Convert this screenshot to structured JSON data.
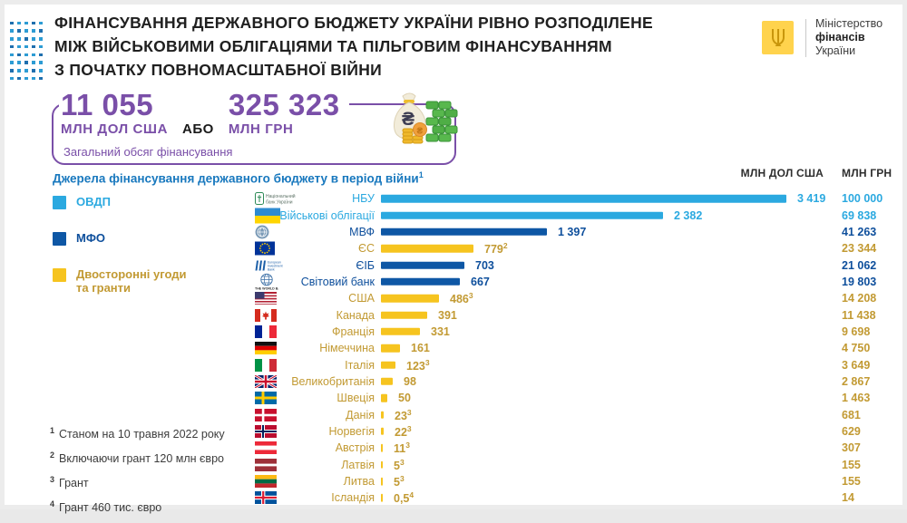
{
  "title": {
    "line1": "ФІНАНСУВАННЯ ДЕРЖАВНОГО БЮДЖЕТУ УКРАЇНИ РІВНО РОЗПОДІЛЕНЕ",
    "line2": "МІЖ ВІЙСЬКОВИМИ ОБЛІГАЦІЯМИ ТА ПІЛЬГОВИМ ФІНАНСУВАННЯМ",
    "line3": "З ПОЧАТКУ ПОВНОМАСШТАБНОЇ ВІЙНИ"
  },
  "logo": {
    "line1": "Міністерство",
    "line2": "фінансів",
    "line3": "України",
    "emblem": "trident-icon",
    "brand_yellow": "#ffd34d"
  },
  "stats": {
    "usd_value": "11 055",
    "usd_unit": "МЛН ДОЛ США",
    "or": "АБО",
    "uah_value": "325 323",
    "uah_unit": "МЛН ГРН",
    "caption": "Загальний обсяг фінансування",
    "accent_purple": "#7a4fa8",
    "icon": "money-bag-icon"
  },
  "chart_data": {
    "type": "bar",
    "orientation": "horizontal",
    "title": "Джерела фінансування державного бюджету в період війни",
    "title_footnote": "1",
    "col_headers": [
      "МЛН ДОЛ США",
      "МЛН ГРН"
    ],
    "x_max_usd": 3419,
    "legend": [
      {
        "label": "ОВДП",
        "group": "ovdp"
      },
      {
        "label": "МФО",
        "group": "mfo"
      },
      {
        "label": "Двосторонні угоди\nта гранти",
        "group": "grant"
      }
    ],
    "colors": {
      "ovdp": {
        "bar": "#2ba9e0",
        "text": "#2ba9e0"
      },
      "mfo": {
        "bar": "#0e57a5",
        "text": "#0e4f9c"
      },
      "grant": {
        "bar": "#f6c41f",
        "text": "#c29a33"
      }
    },
    "rows": [
      {
        "label": "НБУ",
        "flag": "nbu",
        "group": "ovdp",
        "usd": 3419,
        "usd_text": "3 419",
        "sup": "",
        "uah": 100000,
        "uah_text": "100 000"
      },
      {
        "label": "Військові облігації",
        "flag": "ua",
        "group": "ovdp",
        "usd": 2382,
        "usd_text": "2 382",
        "sup": "",
        "uah": 69838,
        "uah_text": "69 838"
      },
      {
        "label": "МВФ",
        "flag": "imf",
        "group": "mfo",
        "usd": 1397,
        "usd_text": "1 397",
        "sup": "",
        "uah": 41263,
        "uah_text": "41 263"
      },
      {
        "label": "ЄС",
        "flag": "eu",
        "group": "grant",
        "usd": 779,
        "usd_text": "779",
        "sup": "2",
        "uah": 23344,
        "uah_text": "23 344"
      },
      {
        "label": "ЄІБ",
        "flag": "eib",
        "group": "mfo",
        "usd": 703,
        "usd_text": "703",
        "sup": "",
        "uah": 21062,
        "uah_text": "21 062"
      },
      {
        "label": "Світовий  банк",
        "flag": "wb",
        "group": "mfo",
        "usd": 667,
        "usd_text": "667",
        "sup": "",
        "uah": 19803,
        "uah_text": "19 803"
      },
      {
        "label": "США",
        "flag": "us",
        "group": "grant",
        "usd": 486,
        "usd_text": "486",
        "sup": "3",
        "uah": 14208,
        "uah_text": "14 208"
      },
      {
        "label": "Канада",
        "flag": "ca",
        "group": "grant",
        "usd": 391,
        "usd_text": "391",
        "sup": "",
        "uah": 11438,
        "uah_text": "11 438"
      },
      {
        "label": "Франція",
        "flag": "fr",
        "group": "grant",
        "usd": 331,
        "usd_text": "331",
        "sup": "",
        "uah": 9698,
        "uah_text": "9 698"
      },
      {
        "label": "Німеччина",
        "flag": "de",
        "group": "grant",
        "usd": 161,
        "usd_text": "161",
        "sup": "",
        "uah": 4750,
        "uah_text": "4 750"
      },
      {
        "label": "Італія",
        "flag": "it",
        "group": "grant",
        "usd": 123,
        "usd_text": "123",
        "sup": "3",
        "uah": 3649,
        "uah_text": "3 649"
      },
      {
        "label": "Великобританія",
        "flag": "uk",
        "group": "grant",
        "usd": 98,
        "usd_text": "98",
        "sup": "",
        "uah": 2867,
        "uah_text": "2 867"
      },
      {
        "label": "Швеція",
        "flag": "se",
        "group": "grant",
        "usd": 50,
        "usd_text": "50",
        "sup": "",
        "uah": 1463,
        "uah_text": "1 463"
      },
      {
        "label": "Данія",
        "flag": "dk",
        "group": "grant",
        "usd": 23,
        "usd_text": "23",
        "sup": "3",
        "uah": 681,
        "uah_text": "681"
      },
      {
        "label": "Норвегія",
        "flag": "no",
        "group": "grant",
        "usd": 22,
        "usd_text": "22",
        "sup": "3",
        "uah": 629,
        "uah_text": "629"
      },
      {
        "label": "Австрія",
        "flag": "at",
        "group": "grant",
        "usd": 11,
        "usd_text": "11",
        "sup": "3",
        "uah": 307,
        "uah_text": "307"
      },
      {
        "label": "Латвія",
        "flag": "lv",
        "group": "grant",
        "usd": 5,
        "usd_text": "5",
        "sup": "3",
        "uah": 155,
        "uah_text": "155"
      },
      {
        "label": "Литва",
        "flag": "lt",
        "group": "grant",
        "usd": 5,
        "usd_text": "5",
        "sup": "3",
        "uah": 155,
        "uah_text": "155"
      },
      {
        "label": "Ісландія",
        "flag": "is",
        "group": "grant",
        "usd": 0.5,
        "usd_text": "0,5",
        "sup": "4",
        "uah": 14,
        "uah_text": "14"
      }
    ]
  },
  "footnotes": [
    {
      "sup": "1",
      "text": "Станом на 10 травня 2022 року"
    },
    {
      "sup": "2",
      "text": "Включаючи грант 120 млн євро"
    },
    {
      "sup": "3",
      "text": "Грант"
    },
    {
      "sup": "4",
      "text": "Грант 460 тис. євро"
    }
  ]
}
